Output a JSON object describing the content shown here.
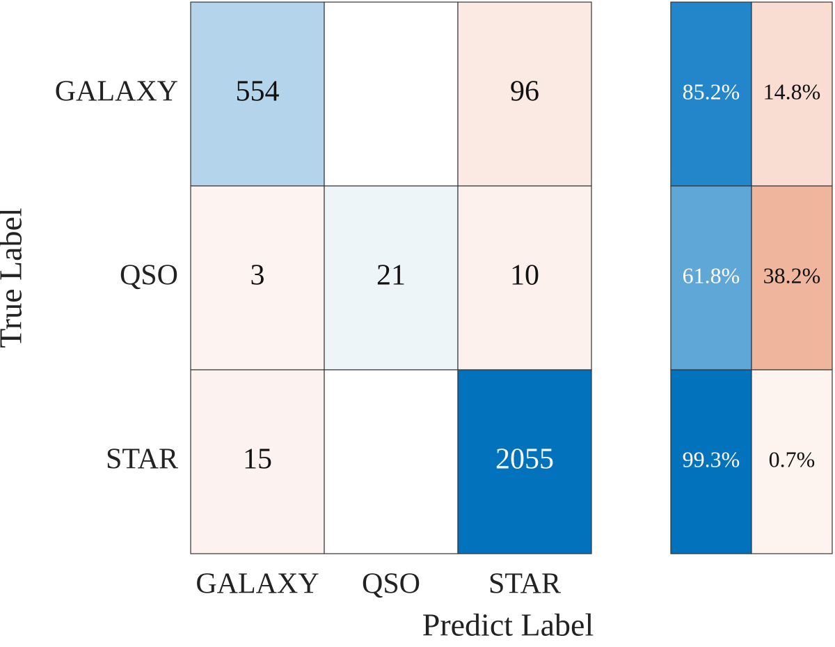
{
  "chart_data": {
    "type": "confusion",
    "categories": [
      "GALAXY",
      "QSO",
      "STAR"
    ],
    "values": [
      [
        554,
        null,
        96
      ],
      [
        3,
        21,
        10
      ],
      [
        15,
        null,
        2055
      ]
    ],
    "colors": [
      [
        "#b3d4ea",
        "#ffffff",
        "#fbeae4"
      ],
      [
        "#fdf3f0",
        "#eef5f9",
        "#fdf1ed"
      ],
      [
        "#fcf2ef",
        "#ffffff",
        "#0272bd"
      ]
    ],
    "xlabel": "Predict Label",
    "ylabel": "True Label",
    "row_summary": {
      "values": [
        [
          85.2,
          14.8
        ],
        [
          61.8,
          38.2
        ],
        [
          99.3,
          0.7
        ]
      ],
      "value_labels": [
        [
          "85.2%",
          "14.8%"
        ],
        [
          "61.8%",
          "38.2%"
        ],
        [
          "99.3%",
          "0.7%"
        ]
      ],
      "colors": [
        [
          "#2386cb",
          "#f9ddd2"
        ],
        [
          "#5ea7d7",
          "#efb59d"
        ],
        [
          "#0272bd",
          "#fdf3ef"
        ]
      ]
    }
  }
}
